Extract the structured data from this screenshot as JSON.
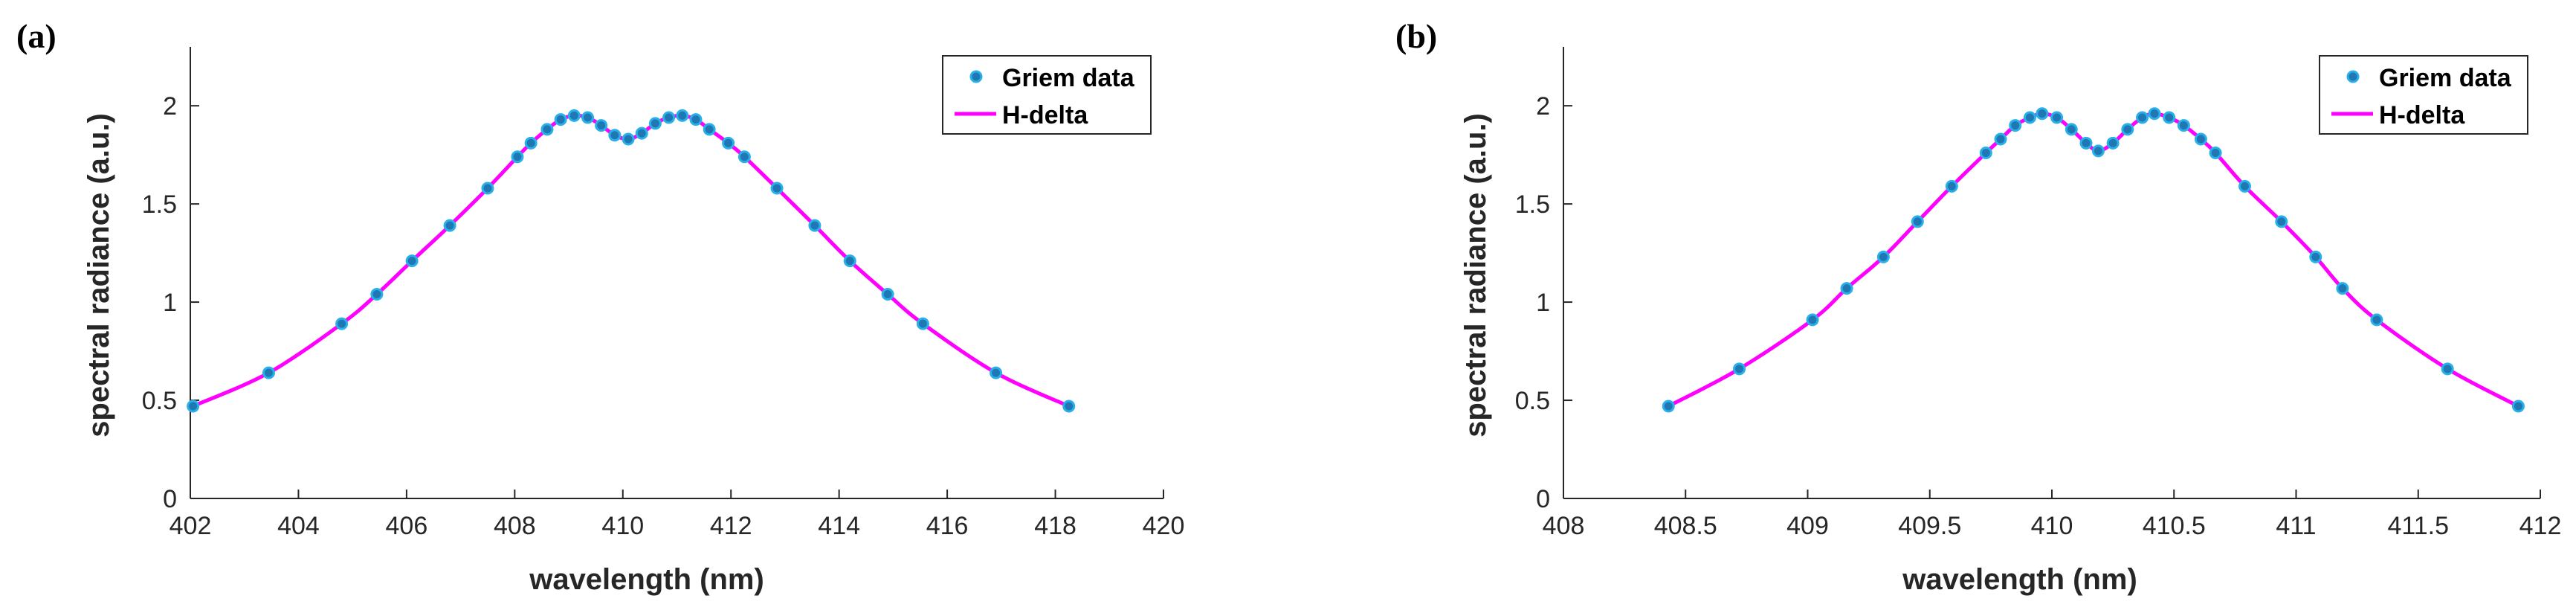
{
  "colors": {
    "line": "#ff00ff",
    "marker_fill": "#1f77b4",
    "marker_edge": "#2ab0e8",
    "axis": "#262626"
  },
  "chart_data": [
    {
      "panel_label": "(a)",
      "type": "line",
      "xlabel": "wavelength (nm)",
      "ylabel": "spectral radiance (a.u.)",
      "xlim": [
        402,
        420
      ],
      "ylim": [
        0,
        2.3
      ],
      "xticks": [
        402,
        404,
        406,
        408,
        410,
        412,
        414,
        416,
        418,
        420
      ],
      "xtick_labels": [
        "402",
        "404",
        "406",
        "408",
        "410",
        "412",
        "414",
        "416",
        "418",
        "420"
      ],
      "yticks": [
        0,
        0.5,
        1,
        1.5,
        2
      ],
      "ytick_labels": [
        "0",
        "0.5",
        "1",
        "1.5",
        "2"
      ],
      "grid": false,
      "legend_position": "top-right",
      "series": [
        {
          "name": "Griem data",
          "style": "markers",
          "x": [
            402.05,
            403.45,
            404.8,
            405.45,
            406.1,
            406.8,
            407.5,
            408.05,
            408.3,
            408.6,
            408.85,
            409.1,
            409.35,
            409.6,
            409.85,
            410.1,
            410.35,
            410.6,
            410.85,
            411.1,
            411.35,
            411.6,
            411.95,
            412.25,
            412.85,
            413.55,
            414.2,
            414.9,
            415.55,
            416.9,
            418.25
          ],
          "y": [
            0.47,
            0.64,
            0.89,
            1.04,
            1.21,
            1.39,
            1.58,
            1.74,
            1.81,
            1.88,
            1.93,
            1.95,
            1.94,
            1.9,
            1.85,
            1.83,
            1.86,
            1.91,
            1.94,
            1.95,
            1.93,
            1.88,
            1.81,
            1.74,
            1.58,
            1.39,
            1.21,
            1.04,
            0.89,
            0.64,
            0.47
          ]
        },
        {
          "name": "H-delta",
          "style": "line",
          "x": [
            402.05,
            403.45,
            404.8,
            405.45,
            406.1,
            406.8,
            407.5,
            408.05,
            408.3,
            408.6,
            408.85,
            409.1,
            409.35,
            409.6,
            409.85,
            410.1,
            410.35,
            410.6,
            410.85,
            411.1,
            411.35,
            411.6,
            411.95,
            412.25,
            412.85,
            413.55,
            414.2,
            414.9,
            415.55,
            416.9,
            418.25
          ],
          "y": [
            0.47,
            0.64,
            0.89,
            1.04,
            1.21,
            1.39,
            1.58,
            1.74,
            1.81,
            1.88,
            1.93,
            1.95,
            1.94,
            1.9,
            1.85,
            1.83,
            1.86,
            1.91,
            1.94,
            1.95,
            1.93,
            1.88,
            1.81,
            1.74,
            1.58,
            1.39,
            1.21,
            1.04,
            0.89,
            0.64,
            0.47
          ]
        }
      ]
    },
    {
      "panel_label": "(b)",
      "type": "line",
      "xlabel": "wavelength (nm)",
      "ylabel": "spectral radiance (a.u.)",
      "xlim": [
        408,
        412
      ],
      "ylim": [
        0,
        2.3
      ],
      "xticks": [
        408,
        408.5,
        409,
        409.5,
        410,
        410.5,
        411,
        411.5,
        412
      ],
      "xtick_labels": [
        "408",
        "408.5",
        "409",
        "409.5",
        "410",
        "410.5",
        "411",
        "411.5",
        "412"
      ],
      "yticks": [
        0,
        0.5,
        1,
        1.5,
        2
      ],
      "ytick_labels": [
        "0",
        "0.5",
        "1",
        "1.5",
        "2"
      ],
      "grid": false,
      "legend_position": "top-right",
      "series": [
        {
          "name": "Griem data",
          "style": "markers",
          "x": [
            408.43,
            408.72,
            409.02,
            409.16,
            409.31,
            409.45,
            409.59,
            409.73,
            409.79,
            409.85,
            409.91,
            409.96,
            410.02,
            410.08,
            410.14,
            410.19,
            410.25,
            410.31,
            410.37,
            410.42,
            410.48,
            410.54,
            410.61,
            410.67,
            410.79,
            410.94,
            411.08,
            411.19,
            411.33,
            411.62,
            411.91
          ],
          "y": [
            0.47,
            0.66,
            0.91,
            1.07,
            1.23,
            1.41,
            1.59,
            1.76,
            1.83,
            1.9,
            1.94,
            1.96,
            1.94,
            1.88,
            1.81,
            1.77,
            1.81,
            1.88,
            1.94,
            1.96,
            1.94,
            1.9,
            1.83,
            1.76,
            1.59,
            1.41,
            1.23,
            1.07,
            0.91,
            0.66,
            0.47
          ]
        },
        {
          "name": "H-delta",
          "style": "line",
          "x": [
            408.43,
            408.72,
            409.02,
            409.16,
            409.31,
            409.45,
            409.59,
            409.73,
            409.79,
            409.85,
            409.91,
            409.96,
            410.02,
            410.08,
            410.14,
            410.19,
            410.25,
            410.31,
            410.37,
            410.42,
            410.48,
            410.54,
            410.61,
            410.67,
            410.79,
            410.94,
            411.08,
            411.19,
            411.33,
            411.62,
            411.91
          ],
          "y": [
            0.47,
            0.66,
            0.91,
            1.07,
            1.23,
            1.41,
            1.59,
            1.76,
            1.83,
            1.9,
            1.94,
            1.96,
            1.94,
            1.88,
            1.81,
            1.77,
            1.81,
            1.88,
            1.94,
            1.96,
            1.94,
            1.9,
            1.83,
            1.76,
            1.59,
            1.41,
            1.23,
            1.07,
            0.91,
            0.66,
            0.47
          ]
        }
      ]
    }
  ]
}
